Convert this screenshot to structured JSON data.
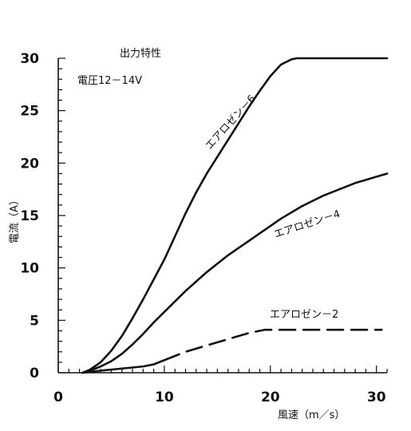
{
  "chart_data": {
    "type": "line",
    "title": "出力特性",
    "subtitle": "電圧12－14V",
    "xlabel": "風速（m／s）",
    "ylabel": "電流（A）",
    "xlim": [
      0,
      31
    ],
    "ylim": [
      0,
      30
    ],
    "x_ticks": [
      0,
      10,
      20,
      30
    ],
    "y_ticks": [
      0,
      5,
      10,
      15,
      20,
      25,
      30
    ],
    "grid": false,
    "series": [
      {
        "name": "エアロゼン－6",
        "style": "solid",
        "x": [
          2.3,
          3,
          4,
          5,
          6,
          7,
          8,
          9,
          10,
          11,
          12,
          13,
          14,
          15,
          16,
          17,
          18,
          19,
          20,
          21,
          22,
          22.5,
          23,
          25,
          28,
          31
        ],
        "y": [
          0,
          0.3,
          1.0,
          2.1,
          3.5,
          5.2,
          7.0,
          8.9,
          10.8,
          13.0,
          15.2,
          17.2,
          19.0,
          20.6,
          22.2,
          23.8,
          25.4,
          26.9,
          28.3,
          29.4,
          29.9,
          30,
          30,
          30,
          30,
          30
        ]
      },
      {
        "name": "エアロゼン－4",
        "style": "solid",
        "x": [
          2.3,
          3,
          4,
          5,
          6,
          7,
          8,
          9,
          10,
          11,
          12,
          13,
          14,
          15,
          16,
          17,
          18,
          19,
          20,
          21,
          22,
          23,
          24,
          25,
          26,
          27,
          28,
          29,
          30,
          31
        ],
        "y": [
          0,
          0.2,
          0.6,
          1.1,
          1.8,
          2.7,
          3.7,
          4.8,
          5.8,
          6.8,
          7.8,
          8.7,
          9.6,
          10.4,
          11.2,
          11.9,
          12.6,
          13.3,
          14.0,
          14.7,
          15.3,
          15.9,
          16.4,
          16.9,
          17.3,
          17.7,
          18.1,
          18.4,
          18.7,
          19.0
        ]
      },
      {
        "name": "エアロゼン－2",
        "style": "solid-dashed",
        "x": [
          2.3,
          4,
          6,
          8,
          9,
          10,
          11,
          12,
          14,
          16,
          18,
          19.5,
          20,
          22,
          25,
          28,
          30.5
        ],
        "y": [
          0,
          0.2,
          0.4,
          0.6,
          0.8,
          1.2,
          1.6,
          2.0,
          2.6,
          3.2,
          3.8,
          4.1,
          4.1,
          4.1,
          4.1,
          4.1,
          4.1
        ],
        "dash_from_x": 10.5
      }
    ],
    "annotations": [
      {
        "text": "エアロゼン－6"
      },
      {
        "text": "エアロゼン－4"
      },
      {
        "text": "エアロゼン－2"
      }
    ]
  }
}
